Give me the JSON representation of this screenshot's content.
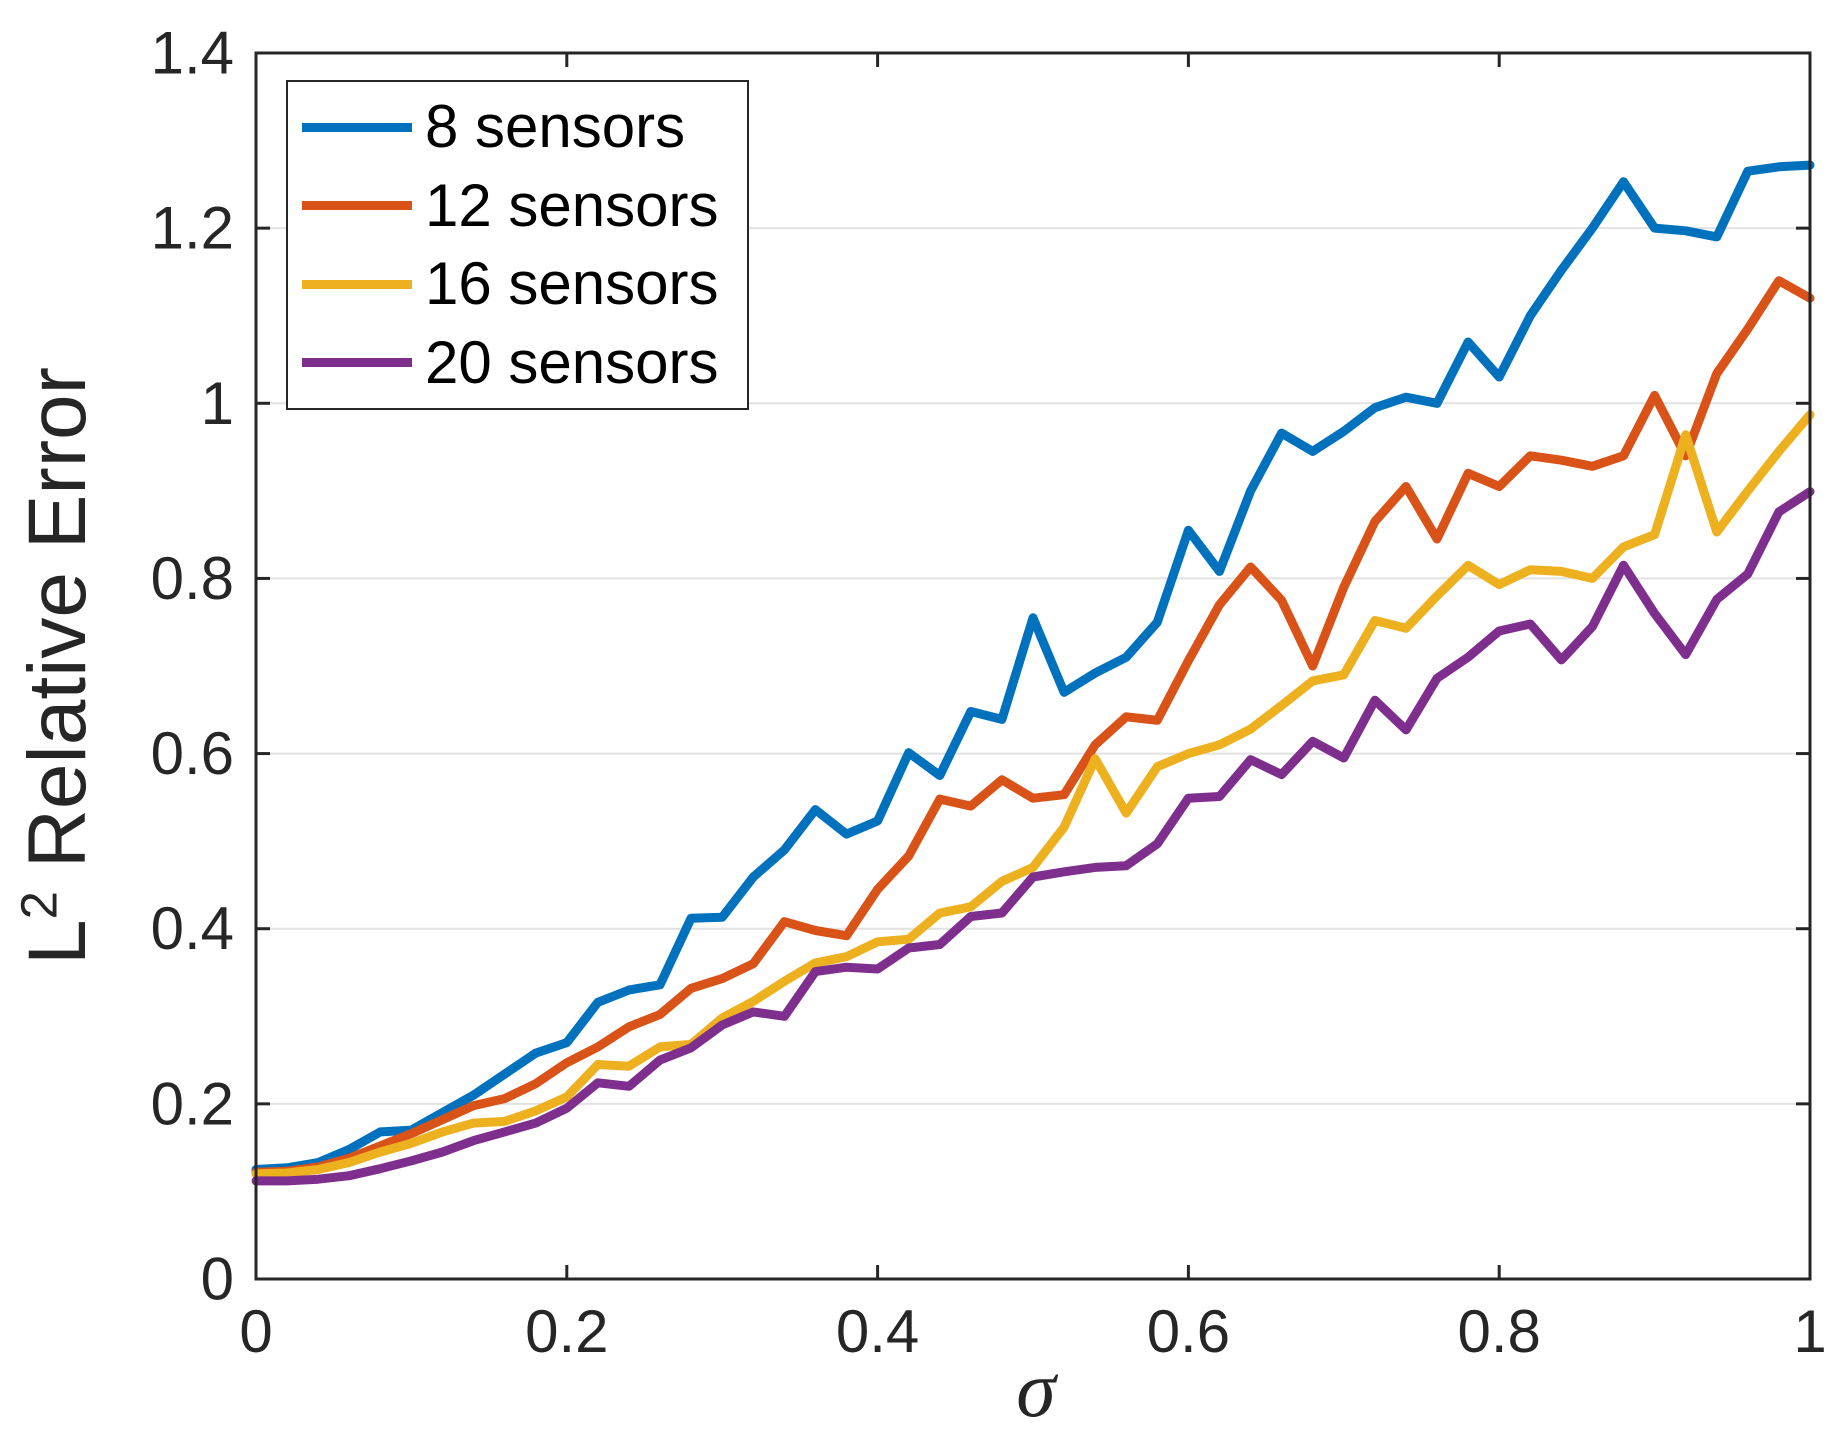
{
  "figure": {
    "background": "#FFFFFF",
    "axis_color": "#262626",
    "grid_color": "#E2E2E2",
    "tick_label_color": "#262626",
    "legend_text_color": "#000000"
  },
  "chart_data": {
    "type": "line",
    "title": "",
    "xlabel": "σ",
    "ylabel": "L^2 Relative Error",
    "ylabel_parts": {
      "base": "L",
      "sup": "2",
      "rest": " Relative Error"
    },
    "xlim": [
      0,
      1
    ],
    "ylim": [
      0,
      1.4
    ],
    "xticks": [
      0,
      0.2,
      0.4,
      0.6,
      0.8,
      1
    ],
    "xtick_labels": [
      "0",
      "0.2",
      "0.4",
      "0.6",
      "0.8",
      "1"
    ],
    "yticks": [
      0,
      0.2,
      0.4,
      0.6,
      0.8,
      1,
      1.2,
      1.4
    ],
    "ytick_labels": [
      "0",
      "0.2",
      "0.4",
      "0.6",
      "0.8",
      "1",
      "1.2",
      "1.4"
    ],
    "grid": "horizontal",
    "legend_position": "top-left",
    "x": [
      0,
      0.02,
      0.04,
      0.06,
      0.08,
      0.1,
      0.12,
      0.14,
      0.16,
      0.18,
      0.2,
      0.22,
      0.24,
      0.26,
      0.28,
      0.3,
      0.32,
      0.34,
      0.36,
      0.38,
      0.4,
      0.42,
      0.44,
      0.46,
      0.48,
      0.5,
      0.52,
      0.54,
      0.56,
      0.58,
      0.6,
      0.62,
      0.64,
      0.66,
      0.68,
      0.7,
      0.72,
      0.74,
      0.76,
      0.78,
      0.8,
      0.82,
      0.84,
      0.86,
      0.88,
      0.9,
      0.92,
      0.94,
      0.96,
      0.98,
      1
    ],
    "series": [
      {
        "name": "8 sensors",
        "color": "#0072BD",
        "values": [
          0.125,
          0.127,
          0.133,
          0.148,
          0.168,
          0.17,
          0.19,
          0.21,
          0.234,
          0.258,
          0.27,
          0.316,
          0.33,
          0.336,
          0.412,
          0.413,
          0.459,
          0.49,
          0.536,
          0.508,
          0.523,
          0.601,
          0.575,
          0.648,
          0.639,
          0.755,
          0.67,
          0.692,
          0.71,
          0.75,
          0.855,
          0.808,
          0.9,
          0.966,
          0.945,
          0.968,
          0.995,
          1.007,
          1.0,
          1.07,
          1.03,
          1.1,
          1.152,
          1.2,
          1.253,
          1.2,
          1.197,
          1.19,
          1.265,
          1.27,
          1.272
        ]
      },
      {
        "name": "12 sensors",
        "color": "#D95319",
        "values": [
          0.122,
          0.123,
          0.128,
          0.138,
          0.152,
          0.166,
          0.182,
          0.198,
          0.206,
          0.223,
          0.247,
          0.265,
          0.288,
          0.302,
          0.332,
          0.343,
          0.36,
          0.408,
          0.398,
          0.392,
          0.445,
          0.483,
          0.548,
          0.54,
          0.57,
          0.549,
          0.553,
          0.61,
          0.642,
          0.638,
          0.706,
          0.77,
          0.813,
          0.775,
          0.7,
          0.79,
          0.865,
          0.905,
          0.845,
          0.92,
          0.905,
          0.94,
          0.935,
          0.928,
          0.94,
          1.009,
          0.94,
          1.034,
          1.085,
          1.14,
          1.12
        ]
      },
      {
        "name": "16 sensors",
        "color": "#EDB120",
        "values": [
          0.12,
          0.121,
          0.125,
          0.133,
          0.145,
          0.155,
          0.168,
          0.178,
          0.18,
          0.192,
          0.208,
          0.245,
          0.243,
          0.265,
          0.268,
          0.298,
          0.317,
          0.34,
          0.361,
          0.368,
          0.385,
          0.388,
          0.418,
          0.425,
          0.454,
          0.47,
          0.516,
          0.594,
          0.532,
          0.585,
          0.6,
          0.61,
          0.628,
          0.655,
          0.683,
          0.69,
          0.752,
          0.743,
          0.78,
          0.815,
          0.793,
          0.81,
          0.808,
          0.8,
          0.836,
          0.85,
          0.964,
          0.853,
          0.9,
          0.945,
          0.987
        ]
      },
      {
        "name": "20 sensors",
        "color": "#7E2F8E",
        "values": [
          0.112,
          0.112,
          0.114,
          0.118,
          0.126,
          0.135,
          0.145,
          0.158,
          0.168,
          0.178,
          0.195,
          0.224,
          0.22,
          0.25,
          0.264,
          0.29,
          0.305,
          0.3,
          0.351,
          0.356,
          0.354,
          0.378,
          0.382,
          0.414,
          0.418,
          0.459,
          0.465,
          0.47,
          0.472,
          0.497,
          0.549,
          0.551,
          0.593,
          0.576,
          0.614,
          0.595,
          0.661,
          0.627,
          0.686,
          0.71,
          0.74,
          0.748,
          0.707,
          0.745,
          0.815,
          0.76,
          0.713,
          0.776,
          0.805,
          0.876,
          0.899
        ]
      }
    ]
  }
}
